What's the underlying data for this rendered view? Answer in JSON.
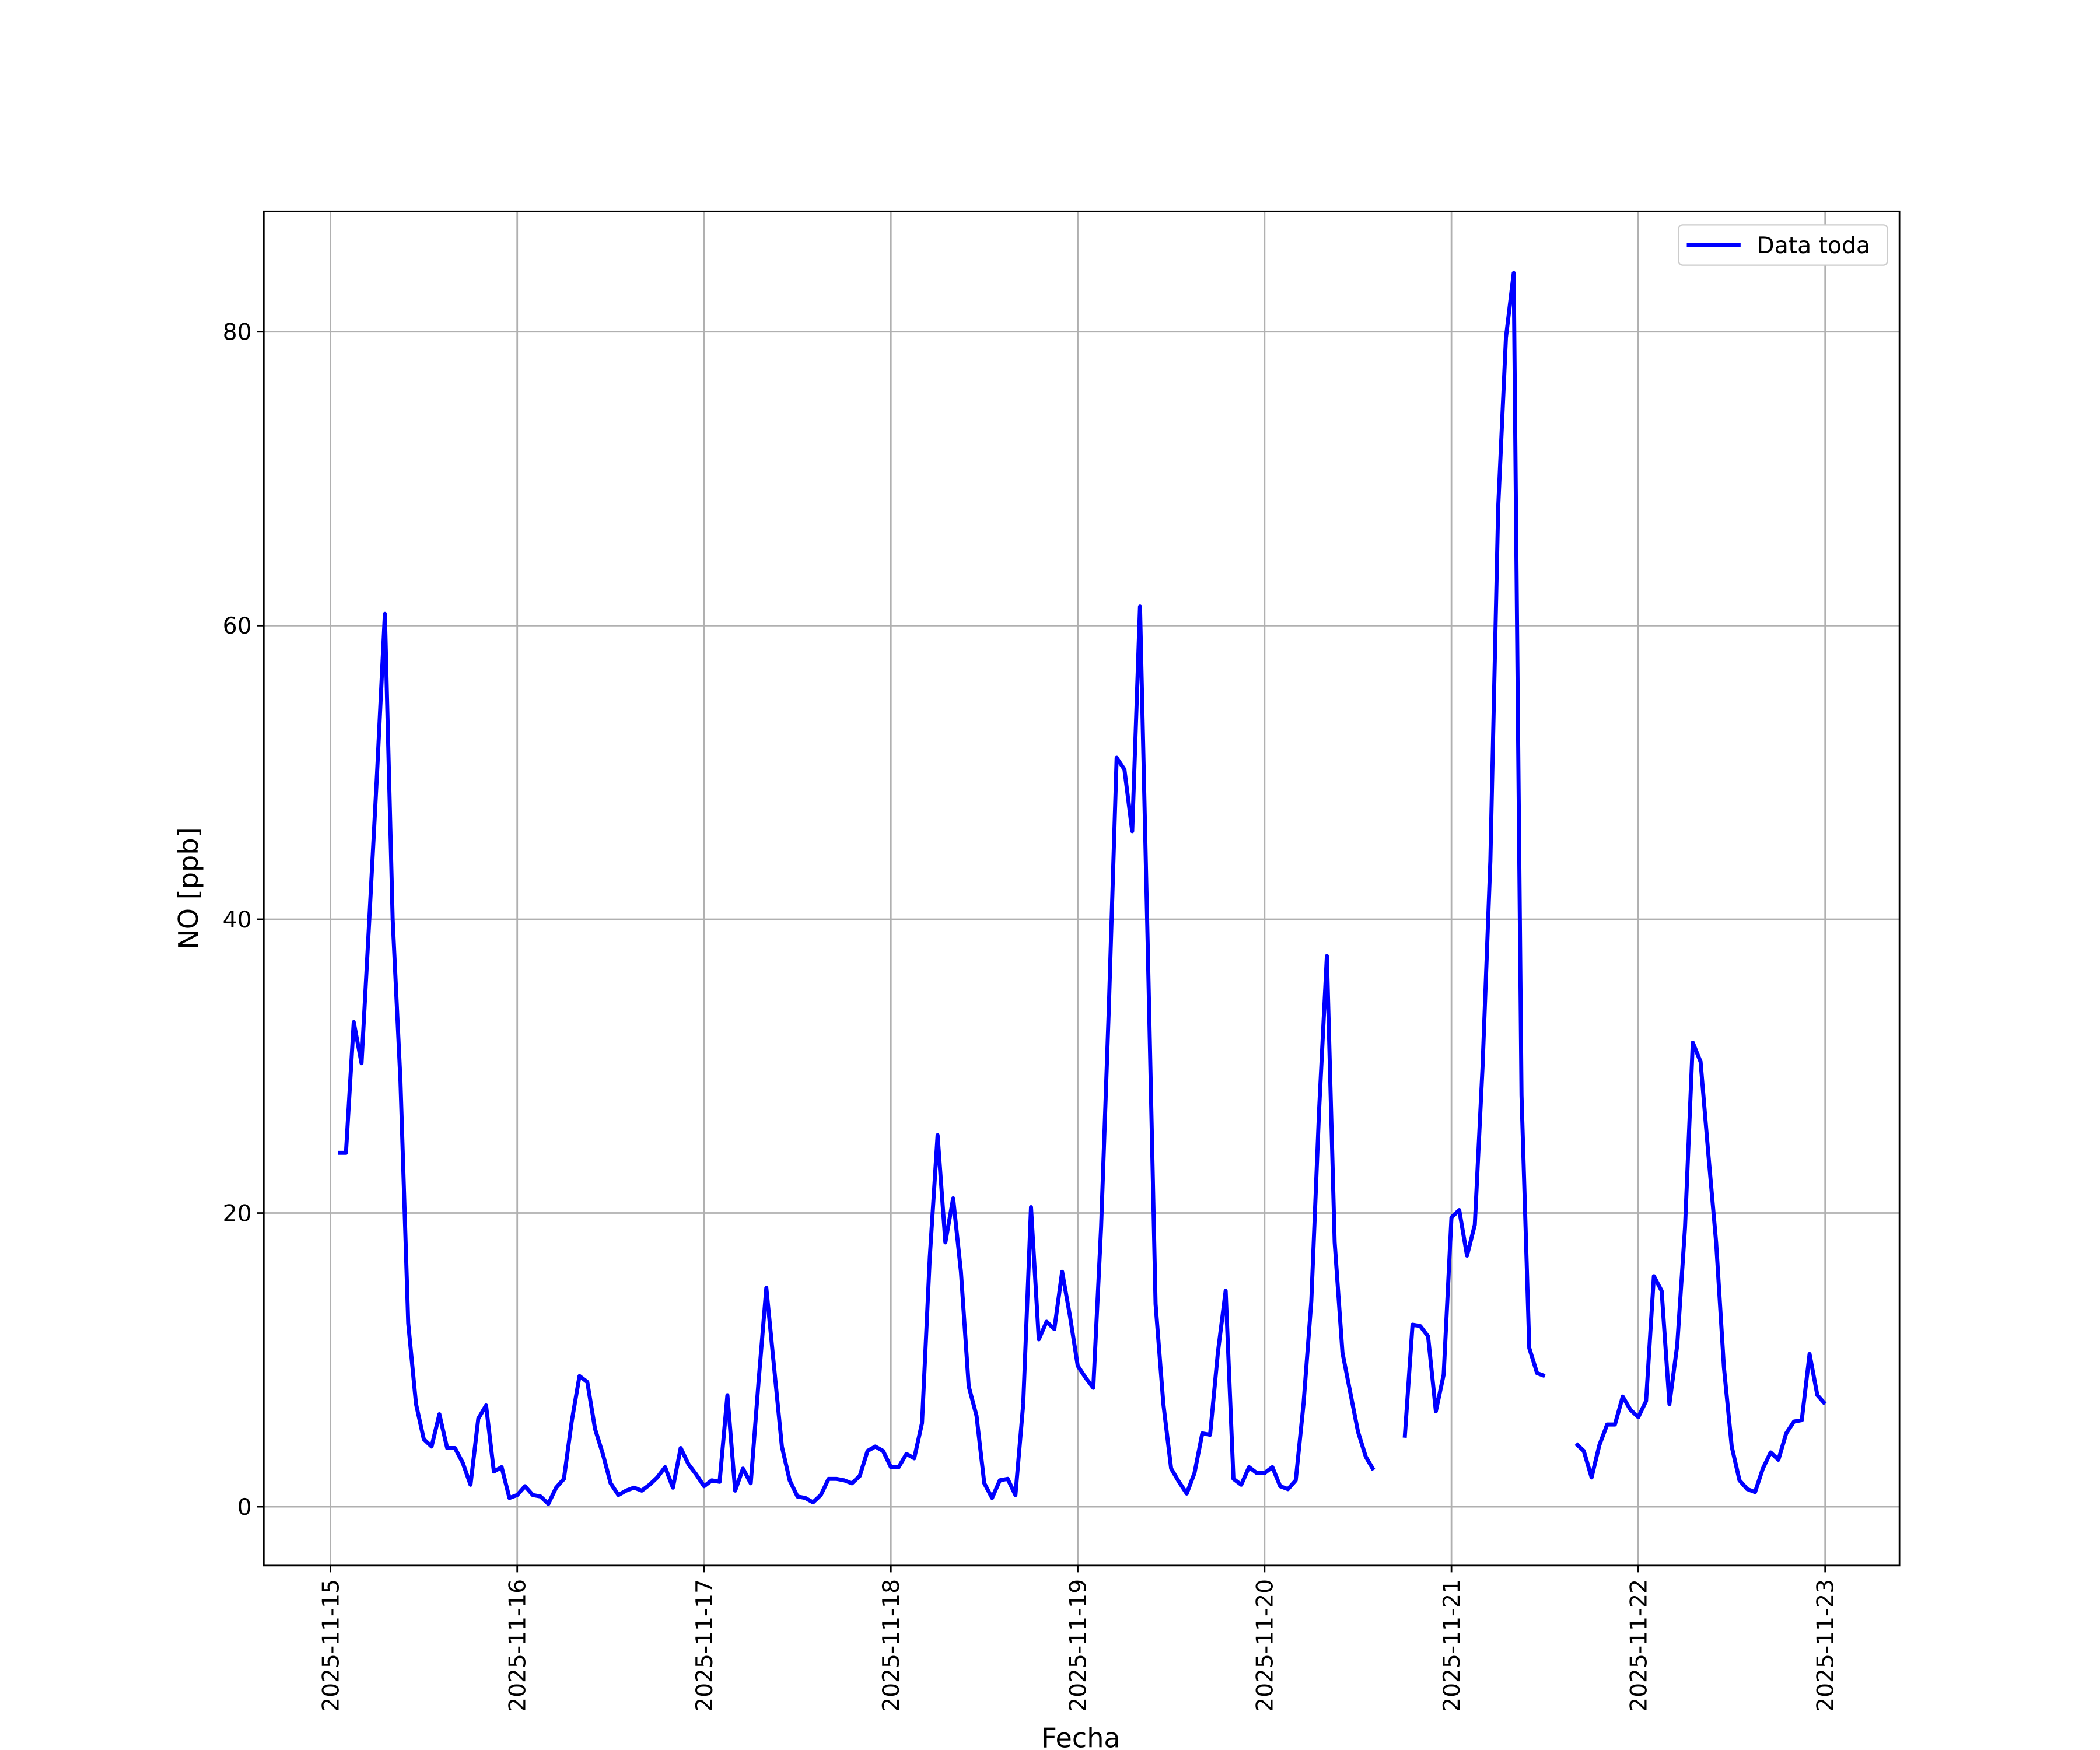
{
  "chart_data": {
    "type": "line",
    "xlabel": "Fecha",
    "ylabel": "NO [ppb]",
    "x": [
      "2025-11-15 01:00",
      "2025-11-15 02:00",
      "2025-11-15 03:00",
      "2025-11-15 04:00",
      "2025-11-15 05:00",
      "2025-11-15 06:00",
      "2025-11-15 07:00",
      "2025-11-15 08:00",
      "2025-11-15 09:00",
      "2025-11-15 10:00",
      "2025-11-15 11:00",
      "2025-11-15 12:00",
      "2025-11-15 13:00",
      "2025-11-15 14:00",
      "2025-11-15 15:00",
      "2025-11-15 16:00",
      "2025-11-15 17:00",
      "2025-11-15 18:00",
      "2025-11-15 19:00",
      "2025-11-15 20:00",
      "2025-11-15 21:00",
      "2025-11-15 22:00",
      "2025-11-15 23:00",
      "2025-11-16 00:00",
      "2025-11-16 01:00",
      "2025-11-16 02:00",
      "2025-11-16 03:00",
      "2025-11-16 04:00",
      "2025-11-16 05:00",
      "2025-11-16 06:00",
      "2025-11-16 07:00",
      "2025-11-16 08:00",
      "2025-11-16 09:00",
      "2025-11-16 10:00",
      "2025-11-16 11:00",
      "2025-11-16 12:00",
      "2025-11-16 13:00",
      "2025-11-16 14:00",
      "2025-11-16 15:00",
      "2025-11-16 16:00",
      "2025-11-16 17:00",
      "2025-11-16 18:00",
      "2025-11-16 19:00",
      "2025-11-16 20:00",
      "2025-11-16 21:00",
      "2025-11-16 22:00",
      "2025-11-16 23:00",
      "2025-11-17 00:00",
      "2025-11-17 01:00",
      "2025-11-17 02:00",
      "2025-11-17 03:00",
      "2025-11-17 04:00",
      "2025-11-17 05:00",
      "2025-11-17 06:00",
      "2025-11-17 07:00",
      "2025-11-17 08:00",
      "2025-11-17 09:00",
      "2025-11-17 10:00",
      "2025-11-17 11:00",
      "2025-11-17 12:00",
      "2025-11-17 13:00",
      "2025-11-17 14:00",
      "2025-11-17 15:00",
      "2025-11-17 16:00",
      "2025-11-17 17:00",
      "2025-11-17 18:00",
      "2025-11-17 19:00",
      "2025-11-17 20:00",
      "2025-11-17 21:00",
      "2025-11-17 22:00",
      "2025-11-17 23:00",
      "2025-11-18 00:00",
      "2025-11-18 01:00",
      "2025-11-18 02:00",
      "2025-11-18 03:00",
      "2025-11-18 04:00",
      "2025-11-18 05:00",
      "2025-11-18 06:00",
      "2025-11-18 07:00",
      "2025-11-18 08:00",
      "2025-11-18 09:00",
      "2025-11-18 10:00",
      "2025-11-18 11:00",
      "2025-11-18 12:00",
      "2025-11-18 13:00",
      "2025-11-18 14:00",
      "2025-11-18 15:00",
      "2025-11-18 16:00",
      "2025-11-18 17:00",
      "2025-11-18 18:00",
      "2025-11-18 19:00",
      "2025-11-18 20:00",
      "2025-11-18 21:00",
      "2025-11-18 22:00",
      "2025-11-18 23:00",
      "2025-11-19 00:00",
      "2025-11-19 01:00",
      "2025-11-19 02:00",
      "2025-11-19 03:00",
      "2025-11-19 04:00",
      "2025-11-19 05:00",
      "2025-11-19 06:00",
      "2025-11-19 07:00",
      "2025-11-19 08:00",
      "2025-11-19 09:00",
      "2025-11-19 10:00",
      "2025-11-19 11:00",
      "2025-11-19 12:00",
      "2025-11-19 13:00",
      "2025-11-19 14:00",
      "2025-11-19 15:00",
      "2025-11-19 16:00",
      "2025-11-19 17:00",
      "2025-11-19 18:00",
      "2025-11-19 19:00",
      "2025-11-19 20:00",
      "2025-11-19 21:00",
      "2025-11-19 22:00",
      "2025-11-19 23:00",
      "2025-11-20 00:00",
      "2025-11-20 01:00",
      "2025-11-20 02:00",
      "2025-11-20 03:00",
      "2025-11-20 04:00",
      "2025-11-20 05:00",
      "2025-11-20 06:00",
      "2025-11-20 07:00",
      "2025-11-20 08:00",
      "2025-11-20 09:00",
      "2025-11-20 10:00",
      "2025-11-20 11:00",
      "2025-11-20 12:00",
      "2025-11-20 13:00",
      "2025-11-20 14:00",
      "2025-11-20 15:00",
      "2025-11-20 16:00",
      "2025-11-20 17:00",
      "2025-11-20 18:00",
      "2025-11-20 19:00",
      "2025-11-20 20:00",
      "2025-11-20 21:00",
      "2025-11-20 22:00",
      "2025-11-20 23:00",
      "2025-11-21 00:00",
      "2025-11-21 01:00",
      "2025-11-21 02:00",
      "2025-11-21 03:00",
      "2025-11-21 04:00",
      "2025-11-21 05:00",
      "2025-11-21 06:00",
      "2025-11-21 07:00",
      "2025-11-21 08:00",
      "2025-11-21 09:00",
      "2025-11-21 10:00",
      "2025-11-21 11:00",
      "2025-11-21 12:00",
      "2025-11-21 13:00",
      "2025-11-21 14:00",
      "2025-11-21 15:00",
      "2025-11-21 16:00",
      "2025-11-21 17:00",
      "2025-11-21 18:00",
      "2025-11-21 19:00",
      "2025-11-21 20:00",
      "2025-11-21 21:00",
      "2025-11-21 22:00",
      "2025-11-21 23:00",
      "2025-11-22 00:00",
      "2025-11-22 01:00",
      "2025-11-22 02:00",
      "2025-11-22 03:00",
      "2025-11-22 04:00",
      "2025-11-22 05:00",
      "2025-11-22 06:00",
      "2025-11-22 07:00",
      "2025-11-22 08:00",
      "2025-11-22 09:00",
      "2025-11-22 10:00",
      "2025-11-22 11:00",
      "2025-11-22 12:00",
      "2025-11-22 13:00",
      "2025-11-22 14:00",
      "2025-11-22 15:00",
      "2025-11-22 16:00",
      "2025-11-22 17:00",
      "2025-11-22 18:00",
      "2025-11-22 19:00",
      "2025-11-22 20:00",
      "2025-11-22 21:00",
      "2025-11-22 22:00",
      "2025-11-22 23:00",
      "2025-11-23 00:00"
    ],
    "series": [
      {
        "name": "Data toda",
        "color": "#0000ff",
        "values": [
          24.1,
          24.1,
          33,
          30.2,
          40,
          50,
          60.8,
          40,
          29,
          12.5,
          7,
          4.6,
          4.1,
          6.3,
          4,
          4,
          3,
          1.5,
          6,
          6.9,
          2.4,
          2.7,
          0.6,
          0.8,
          1.4,
          0.8,
          0.7,
          0.2,
          1.3,
          1.9,
          5.8,
          8.9,
          8.5,
          5.3,
          3.6,
          1.6,
          0.8,
          1.1,
          1.3,
          1.1,
          1.5,
          2,
          2.7,
          1.3,
          4,
          2.9,
          2.2,
          1.4,
          1.8,
          1.7,
          7.6,
          1.1,
          2.6,
          1.6,
          8.5,
          14.9,
          9.5,
          4.1,
          1.8,
          0.7,
          0.6,
          0.3,
          0.8,
          1.9,
          1.9,
          1.8,
          1.6,
          2.1,
          3.8,
          4.1,
          3.8,
          2.7,
          2.7,
          3.6,
          3.3,
          5.7,
          17,
          25.3,
          18,
          21,
          16,
          8.2,
          6.2,
          1.6,
          0.6,
          1.8,
          1.9,
          0.8,
          7,
          20.4,
          11.4,
          12.6,
          12.1,
          16,
          13,
          9.6,
          8.8,
          8.1,
          19,
          34,
          51,
          50.2,
          46,
          61.3,
          38,
          13.8,
          7,
          2.6,
          1.7,
          0.9,
          2.3,
          5,
          4.9,
          10.5,
          14.7,
          1.9,
          1.5,
          2.7,
          2.3,
          2.3,
          2.7,
          1.4,
          1.2,
          1.8,
          7,
          14,
          27,
          37.5,
          18,
          10.5,
          7.8,
          5.1,
          3.4,
          2.5,
          null,
          null,
          null,
          4.7,
          12.4,
          12.3,
          11.6,
          6.5,
          9,
          19.7,
          20.2,
          17.1,
          19.2,
          30,
          44,
          68,
          79.6,
          84,
          28,
          10.8,
          9.1,
          8.9,
          null,
          null,
          null,
          4.3,
          3.8,
          2,
          4.2,
          5.6,
          5.6,
          7.5,
          6.6,
          6.1,
          7.2,
          15.7,
          14.7,
          7,
          11,
          19,
          31.6,
          30.3,
          24,
          18,
          9.5,
          4.1,
          1.8,
          1.2,
          1,
          2.6,
          3.7,
          3.2,
          5,
          5.8,
          5.9,
          10.4,
          7.6,
          7
        ]
      }
    ],
    "xlim": [
      "2025-11-14 15:27",
      "2025-11-23 09:33"
    ],
    "xticks": [
      "2025-11-15",
      "2025-11-16",
      "2025-11-17",
      "2025-11-18",
      "2025-11-19",
      "2025-11-20",
      "2025-11-21",
      "2025-11-22",
      "2025-11-23"
    ],
    "ylim": [
      -4,
      88.2
    ],
    "yticks": [
      0,
      20,
      40,
      60,
      80
    ],
    "grid": true,
    "legend": "upper right"
  }
}
